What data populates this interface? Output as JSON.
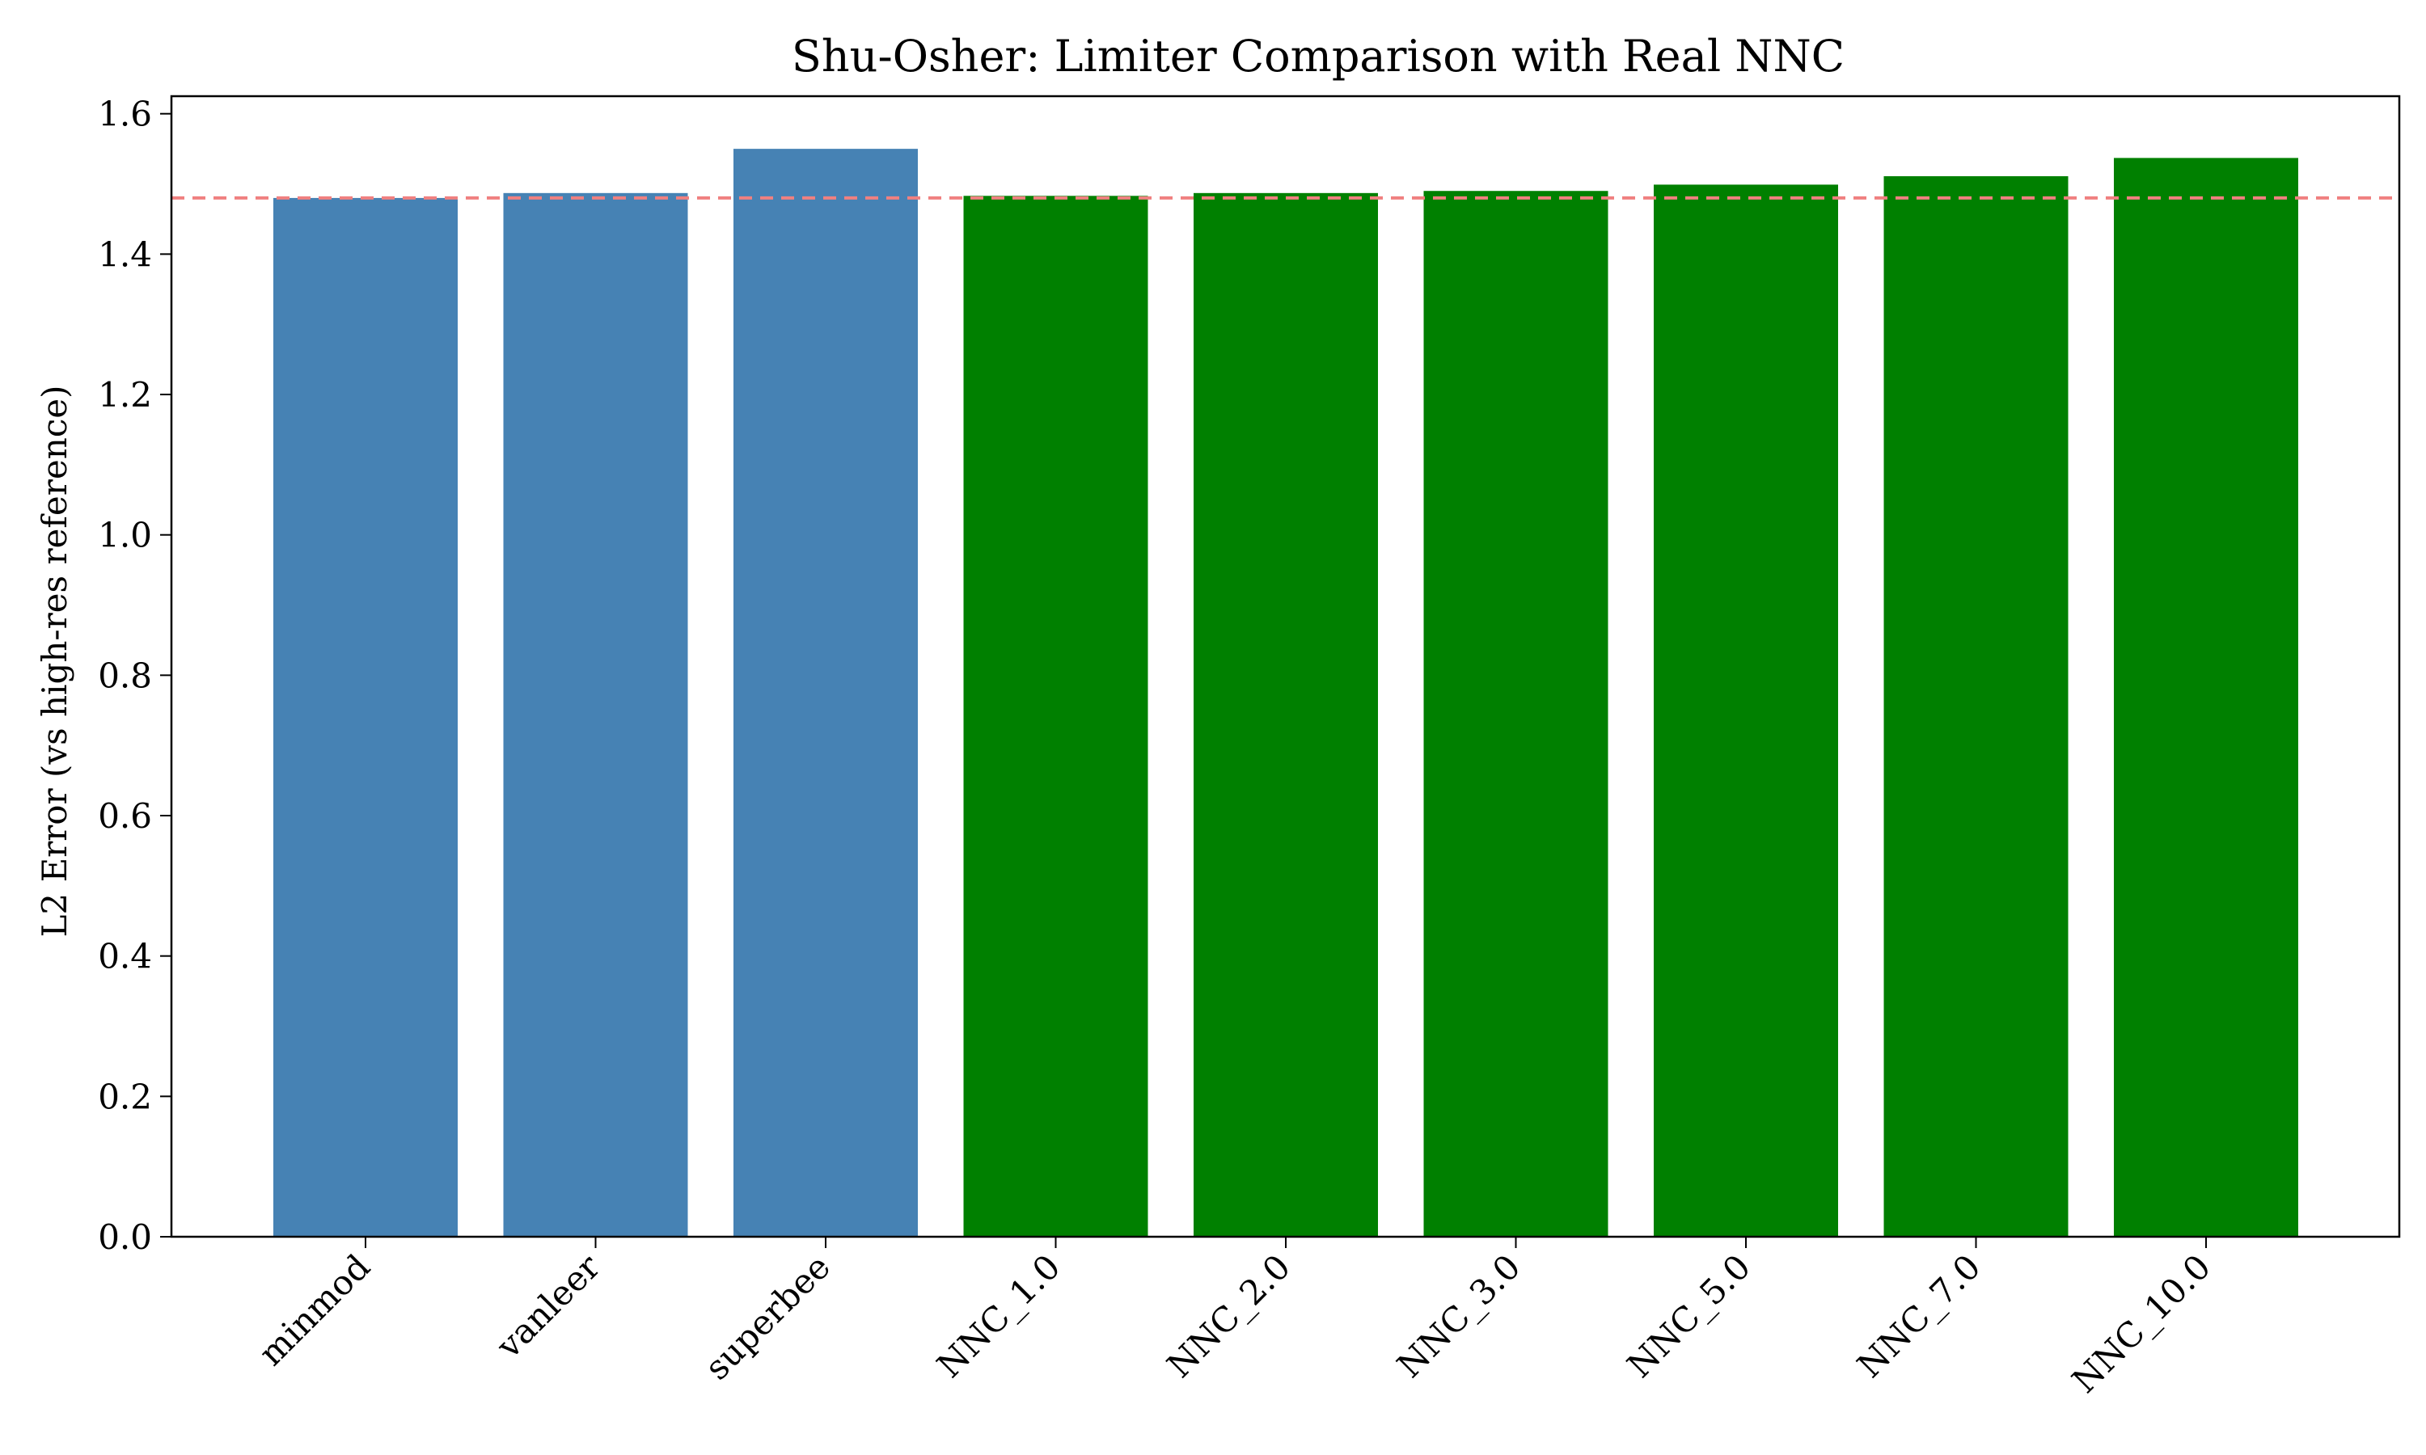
{
  "chart_data": {
    "type": "bar",
    "title": "Shu-Osher: Limiter Comparison with Real NNC",
    "xlabel": "",
    "ylabel": "L2 Error (vs high-res reference)",
    "categories": [
      "minmod",
      "vanleer",
      "superbee",
      "NNC_1.0",
      "NNC_2.0",
      "NNC_3.0",
      "NNC_5.0",
      "NNC_7.0",
      "NNC_10.0"
    ],
    "values": [
      1.48,
      1.487,
      1.55,
      1.483,
      1.487,
      1.49,
      1.499,
      1.511,
      1.537
    ],
    "bar_colors": [
      "#4682b4",
      "#4682b4",
      "#4682b4",
      "#008000",
      "#008000",
      "#008000",
      "#008000",
      "#008000",
      "#008000"
    ],
    "reference_line": {
      "value": 1.48,
      "color": "#f08080",
      "style": "dashed"
    },
    "ylim": [
      0,
      1.625
    ],
    "yticks": [
      "0.0",
      "0.2",
      "0.4",
      "0.6",
      "0.8",
      "1.0",
      "1.2",
      "1.4",
      "1.6"
    ],
    "grid": false,
    "legend": "none"
  }
}
